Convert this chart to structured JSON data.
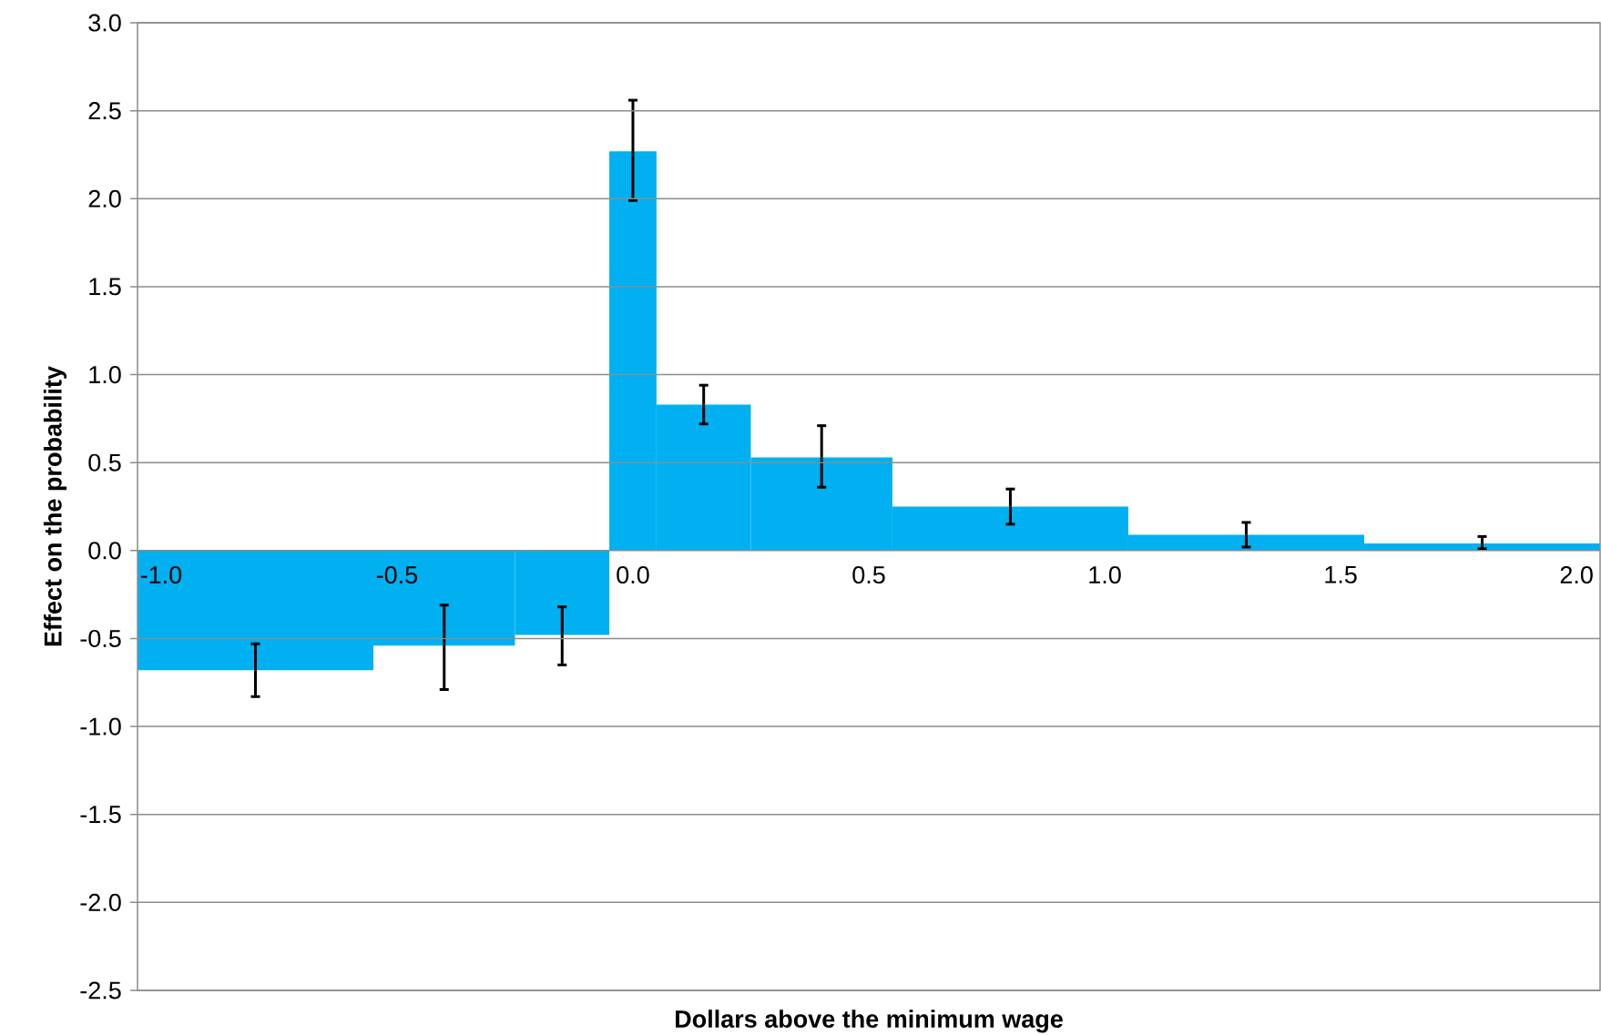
{
  "chart_data": {
    "type": "histogram",
    "xlabel": "Dollars above the minimum wage",
    "ylabel": "Effect on the probability",
    "bins": [
      -1.05,
      -0.55,
      -0.25,
      -0.05,
      0.05,
      0.25,
      0.55,
      1.05,
      1.55,
      2.05
    ],
    "values": [
      -0.68,
      -0.54,
      -0.48,
      2.27,
      0.83,
      0.53,
      0.25,
      0.09,
      0.04
    ],
    "errors": [
      [
        -0.83,
        -0.53
      ],
      [
        -0.79,
        -0.31
      ],
      [
        -0.65,
        -0.32
      ],
      [
        1.99,
        2.56
      ],
      [
        0.72,
        0.94
      ],
      [
        0.36,
        0.71
      ],
      [
        0.15,
        0.35
      ],
      [
        0.02,
        0.16
      ],
      [
        0.01,
        0.08
      ]
    ],
    "color": "#00b0f0",
    "xlim": [
      -1.05,
      2.05
    ],
    "xticks": [
      {
        "value": -1,
        "label": "-1.0"
      },
      {
        "value": -0.5,
        "label": "-0.5"
      },
      {
        "value": 0,
        "label": "0.0"
      },
      {
        "value": 0.5,
        "label": "0.5"
      },
      {
        "value": 1,
        "label": "1.0"
      },
      {
        "value": 1.5,
        "label": "1.5"
      },
      {
        "value": 2,
        "label": "2.0"
      }
    ],
    "ylim": [
      -2.5,
      3.0
    ],
    "yticks": [
      {
        "value": -2.5,
        "label": "-2.5"
      },
      {
        "value": -2,
        "label": "-2.0"
      },
      {
        "value": -1.5,
        "label": "-1.5"
      },
      {
        "value": -1,
        "label": "-1.0"
      },
      {
        "value": -0.5,
        "label": "-0.5"
      },
      {
        "value": 0,
        "label": "0.0"
      },
      {
        "value": 0.5,
        "label": "0.5"
      },
      {
        "value": 1,
        "label": "1.0"
      },
      {
        "value": 1.5,
        "label": "1.5"
      },
      {
        "value": 2,
        "label": "2.0"
      },
      {
        "value": 2.5,
        "label": "2.5"
      },
      {
        "value": 3,
        "label": "3.0"
      }
    ],
    "grid": "y"
  }
}
